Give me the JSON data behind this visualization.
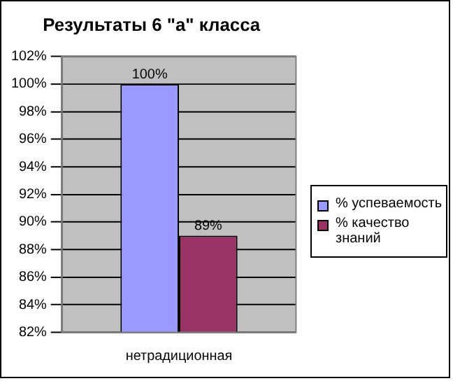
{
  "chart_data": {
    "type": "bar",
    "title": "Результаты 6 \"а\" класса",
    "categories": [
      "нетрадиционная"
    ],
    "series": [
      {
        "name": "% успеваемость",
        "color": "#9999ff",
        "values": [
          100
        ],
        "value_labels": [
          "100%"
        ]
      },
      {
        "name": "% качество знаний",
        "color": "#993366",
        "values": [
          89
        ],
        "value_labels": [
          "89%"
        ]
      }
    ],
    "ylim": [
      82,
      102
    ],
    "yticks": [
      {
        "value": 82,
        "label": "82%"
      },
      {
        "value": 84,
        "label": "84%"
      },
      {
        "value": 86,
        "label": "86%"
      },
      {
        "value": 88,
        "label": "88%"
      },
      {
        "value": 90,
        "label": "90%"
      },
      {
        "value": 92,
        "label": "92%"
      },
      {
        "value": 94,
        "label": "94%"
      },
      {
        "value": 96,
        "label": "96%"
      },
      {
        "value": 98,
        "label": "98%"
      },
      {
        "value": 100,
        "label": "100%"
      },
      {
        "value": 102,
        "label": "102%"
      }
    ],
    "grid": "y",
    "legend": "right"
  }
}
